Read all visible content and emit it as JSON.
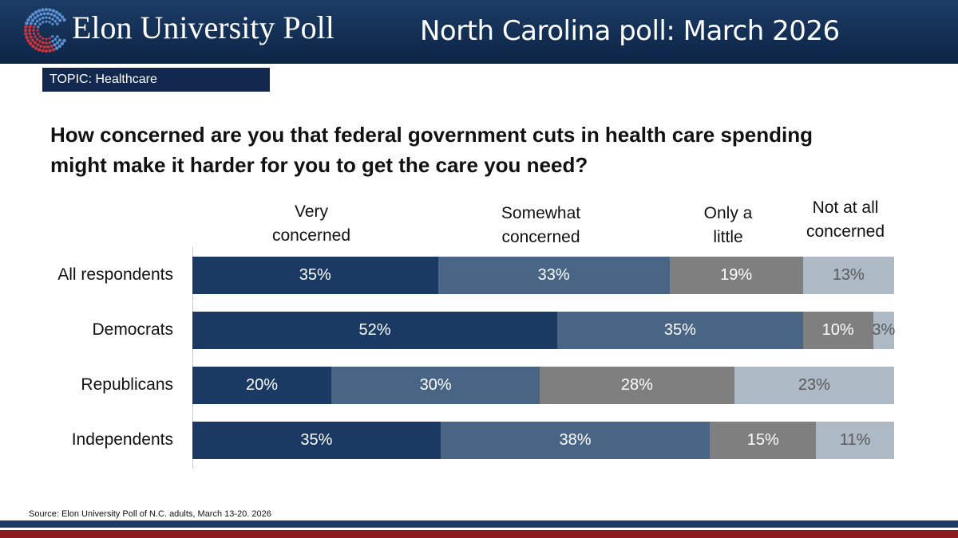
{
  "header": {
    "org_name": "Elon University Poll",
    "poll_title": "North Carolina poll: March 2026"
  },
  "topic": "TOPIC: Healthcare",
  "question": "How concerned are you that federal government cuts in health care spending might make it harder for you to get the care you need?",
  "source": "Source: Elon University Poll of N.C. adults, March 13-20. 2026",
  "colors": {
    "header_bg": "#12284f",
    "footer_red": "#8b1a1e",
    "very": "#1a3a63",
    "somewhat": "#486585",
    "only_little": "#7f7f7f",
    "not_at_all": "#adb9c5"
  },
  "chart_data": {
    "type": "bar",
    "orientation": "horizontal",
    "stacked": true,
    "categories": [
      "All respondents",
      "Democrats",
      "Republicans",
      "Independents"
    ],
    "series": [
      {
        "name": "Very\nconcerned",
        "values": [
          35,
          52,
          20,
          35
        ]
      },
      {
        "name": "Somewhat\nconcerned",
        "values": [
          33,
          35,
          30,
          38
        ]
      },
      {
        "name": "Only a\nlittle",
        "values": [
          19,
          10,
          28,
          15
        ]
      },
      {
        "name": "Not at all\nconcerned",
        "values": [
          13,
          3,
          23,
          11
        ]
      }
    ],
    "value_labels": [
      [
        "35%",
        "33%",
        "19%",
        "13%"
      ],
      [
        "52%",
        "35%",
        "10%",
        "3%"
      ],
      [
        "20%",
        "30%",
        "28%",
        "23%"
      ],
      [
        "35%",
        "38%",
        "15%",
        "11%"
      ]
    ],
    "xlim": [
      0,
      100
    ]
  }
}
